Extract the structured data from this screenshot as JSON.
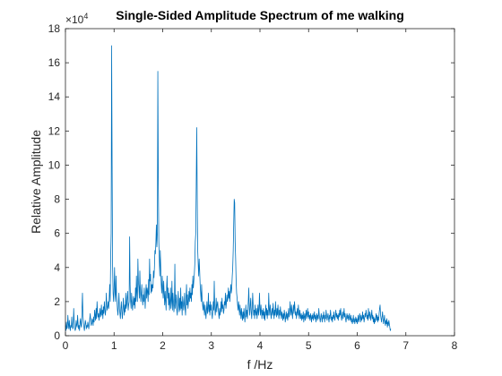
{
  "chart_data": {
    "type": "line",
    "title": "Single-Sided Amplitude Spectrum of me walking",
    "xlabel": "f /Hz",
    "ylabel": "Relative Amplitude",
    "y_exponent_label": "×10",
    "y_exponent_power": "4",
    "xlim": [
      0,
      8
    ],
    "ylim": [
      0,
      18
    ],
    "x_ticks": [
      0,
      1,
      2,
      3,
      4,
      5,
      6,
      7,
      8
    ],
    "y_ticks": [
      0,
      2,
      4,
      6,
      8,
      10,
      12,
      14,
      16,
      18
    ],
    "x_tick_labels": [
      "0",
      "1",
      "2",
      "3",
      "4",
      "5",
      "6",
      "7",
      "8"
    ],
    "y_tick_labels": [
      "0",
      "2",
      "4",
      "6",
      "8",
      "10",
      "12",
      "14",
      "16",
      "18"
    ],
    "grid": false,
    "line_color": "#0072BD",
    "series": [
      {
        "x_start": 0.0,
        "x_step": 0.01,
        "y": [
          0.6,
          0.3,
          0.8,
          0.4,
          0.5,
          1.2,
          0.7,
          0.4,
          0.9,
          0.5,
          0.3,
          0.6,
          0.5,
          1.1,
          0.6,
          0.4,
          0.5,
          1.6,
          0.8,
          0.5,
          0.3,
          0.4,
          0.9,
          0.6,
          0.5,
          1.2,
          0.7,
          0.4,
          0.6,
          0.3,
          0.8,
          1.0,
          0.6,
          0.5,
          1.5,
          2.5,
          1.2,
          0.8,
          0.5,
          0.3,
          0.6,
          0.9,
          0.7,
          0.4,
          0.6,
          0.5,
          0.8,
          0.6,
          0.4,
          0.7,
          1.0,
          1.3,
          0.8,
          0.6,
          0.7,
          1.0,
          0.9,
          0.6,
          1.1,
          0.8,
          1.5,
          1.2,
          0.9,
          1.6,
          1.0,
          2.0,
          1.4,
          1.1,
          1.3,
          0.9,
          1.2,
          1.6,
          1.1,
          1.3,
          1.8,
          1.2,
          1.5,
          1.0,
          1.7,
          1.3,
          2.0,
          1.6,
          1.2,
          1.5,
          2.5,
          1.8,
          1.5,
          1.7,
          2.0,
          1.6,
          2.2,
          3.0,
          2.0,
          4.5,
          6.0,
          17.0,
          10.0,
          4.0,
          2.5,
          2.0,
          2.8,
          4.0,
          2.5,
          2.0,
          3.5,
          2.4,
          2.0,
          1.5,
          1.2,
          1.8,
          2.5,
          1.6,
          1.3,
          1.0,
          1.6,
          2.0,
          1.4,
          1.0,
          1.5,
          2.2,
          1.6,
          1.2,
          1.8,
          1.4,
          2.5,
          1.6,
          1.8,
          2.3,
          2.6,
          1.5,
          1.8,
          2.0,
          5.8,
          3.0,
          2.0,
          1.6,
          2.5,
          2.0,
          1.5,
          1.8,
          2.3,
          1.8,
          2.2,
          1.6,
          2.8,
          2.0,
          3.5,
          2.5,
          2.0,
          4.5,
          3.2,
          2.8,
          2.2,
          3.8,
          2.6,
          2.0,
          2.5,
          3.0,
          2.2,
          1.8,
          2.4,
          2.0,
          2.8,
          2.2,
          1.6,
          2.5,
          3.0,
          2.2,
          2.8,
          2.6,
          2.0,
          3.3,
          2.4,
          4.5,
          3.2,
          3.6,
          2.5,
          3.0,
          2.6,
          3.0,
          2.8,
          3.8,
          3.4,
          4.0,
          5.0,
          4.8,
          5.5,
          6.5,
          5.2,
          6.0,
          15.5,
          9.0,
          5.5,
          4.5,
          3.5,
          5.0,
          4.0,
          3.0,
          2.5,
          3.5,
          2.8,
          2.2,
          3.2,
          2.5,
          1.8,
          2.6,
          2.0,
          1.5,
          2.8,
          3.5,
          2.2,
          2.8,
          1.8,
          2.5,
          1.5,
          2.0,
          2.8,
          1.6,
          2.0,
          3.2,
          1.5,
          2.5,
          2.0,
          1.4,
          1.8,
          4.2,
          1.6,
          2.0,
          2.4,
          1.5,
          1.2,
          2.0,
          2.6,
          1.8,
          1.4,
          2.2,
          1.5,
          2.8,
          1.6,
          2.0,
          1.2,
          2.3,
          2.0,
          1.5,
          1.8,
          2.5,
          1.6,
          1.2,
          2.2,
          3.0,
          1.8,
          2.4,
          1.6,
          2.0,
          2.6,
          2.0,
          2.8,
          2.2,
          2.5,
          2.0,
          3.0,
          2.4,
          3.5,
          2.8,
          3.2,
          3.6,
          4.2,
          5.5,
          6.0,
          9.0,
          12.2,
          8.0,
          5.0,
          4.2,
          3.5,
          4.5,
          3.8,
          3.0,
          2.5,
          2.0,
          3.0,
          2.2,
          1.8,
          1.5,
          2.0,
          1.6,
          1.2,
          1.8,
          1.4,
          1.0,
          1.5,
          2.0,
          1.3,
          1.6,
          2.5,
          1.4,
          1.8,
          1.2,
          2.0,
          1.5,
          1.8,
          1.3,
          1.0,
          1.5,
          2.0,
          1.5,
          3.2,
          1.8,
          1.2,
          1.5,
          2.2,
          1.4,
          1.8,
          2.0,
          1.6,
          1.3,
          1.0,
          1.6,
          1.2,
          1.5,
          2.0,
          1.4,
          2.2,
          1.6,
          1.8,
          1.3,
          1.5,
          2.0,
          1.8,
          2.5,
          1.6,
          1.9,
          2.4,
          2.0,
          2.2,
          2.8,
          2.2,
          2.6,
          2.0,
          2.5,
          3.0,
          2.5,
          2.8,
          3.5,
          4.0,
          5.0,
          6.5,
          8.0,
          7.8,
          5.5,
          4.5,
          3.2,
          2.5,
          2.2,
          1.8,
          1.5,
          2.0,
          1.6,
          1.2,
          1.8,
          1.4,
          1.0,
          1.6,
          1.2,
          0.9,
          1.4,
          1.0,
          1.6,
          1.2,
          0.8,
          1.3,
          1.8,
          1.1,
          1.5,
          1.0,
          1.4,
          2.0,
          2.8,
          1.6,
          1.2,
          1.8,
          2.2,
          1.4,
          1.0,
          1.6,
          2.5,
          1.8,
          1.2,
          1.5,
          1.0,
          1.8,
          1.4,
          1.2,
          1.6,
          1.0,
          1.4,
          1.8,
          1.2,
          1.5,
          2.5,
          1.6,
          1.2,
          1.8,
          1.4,
          1.0,
          1.5,
          1.2,
          1.6,
          1.0,
          1.4,
          0.9,
          1.3,
          1.8,
          1.2,
          1.6,
          1.0,
          1.5,
          1.2,
          2.5,
          1.6,
          1.2,
          1.8,
          1.4,
          1.0,
          1.3,
          1.6,
          1.2,
          1.9,
          1.4,
          1.0,
          1.5,
          1.2,
          2.0,
          1.4,
          1.1,
          1.6,
          1.2,
          1.8,
          1.3,
          1.0,
          1.5,
          1.2,
          1.7,
          1.3,
          1.0,
          1.4,
          1.2,
          0.9,
          1.3,
          1.0,
          1.5,
          1.2,
          0.8,
          1.1,
          1.4,
          1.0,
          1.3,
          0.9,
          1.2,
          1.6,
          1.1,
          1.3,
          2.0,
          1.5,
          1.2,
          1.8,
          1.4,
          1.0,
          1.5,
          1.8,
          1.3,
          2.0,
          1.6,
          1.2,
          1.4,
          1.0,
          1.3,
          1.6,
          1.2,
          1.8,
          1.3,
          1.0,
          1.5,
          1.2,
          1.0,
          1.3,
          0.9,
          1.2,
          1.0,
          1.4,
          0.8,
          1.1,
          1.3,
          0.9,
          1.2,
          1.5,
          1.0,
          1.3,
          1.6,
          1.1,
          1.4,
          1.0,
          1.2,
          0.9,
          1.3,
          1.1,
          0.8,
          1.2,
          1.0,
          1.3,
          0.9,
          1.1,
          1.4,
          1.0,
          1.2,
          0.8,
          1.1,
          1.3,
          0.9,
          1.2,
          1.0,
          1.6,
          1.2,
          1.0,
          0.8,
          1.1,
          1.3,
          1.0,
          0.8,
          1.2,
          1.0,
          1.4,
          1.1,
          0.8,
          1.2,
          1.0,
          1.5,
          1.2,
          0.9,
          1.1,
          1.3,
          1.0,
          0.8,
          1.2,
          1.0,
          1.5,
          1.2,
          0.9,
          1.1,
          0.8,
          1.2,
          1.0,
          1.4,
          1.1,
          0.9,
          1.2,
          1.5,
          1.1,
          1.3,
          1.0,
          1.2,
          0.9,
          1.3,
          1.1,
          1.5,
          1.2,
          1.6,
          1.1,
          0.9,
          1.2,
          1.4,
          1.0,
          1.2,
          1.6,
          1.1,
          1.3,
          1.0,
          0.8,
          1.1,
          1.3,
          1.0,
          1.2,
          0.9,
          1.1,
          1.3,
          0.9,
          1.0,
          1.2,
          0.8,
          1.0,
          0.7,
          0.9,
          1.2,
          0.8,
          1.0,
          0.7,
          0.9,
          1.1,
          0.8,
          1.0,
          0.7,
          0.9,
          1.2,
          0.8,
          1.0,
          1.3,
          1.1,
          0.8,
          1.2,
          0.9,
          1.0,
          1.4,
          1.0,
          1.2,
          0.8,
          1.0,
          1.3,
          1.1,
          1.5,
          1.3,
          1.0,
          1.2,
          0.9,
          1.6,
          1.2,
          1.0,
          1.4,
          1.2,
          0.9,
          1.2,
          1.5,
          1.0,
          1.2,
          0.8,
          1.1,
          0.7,
          1.0,
          0.8,
          1.1,
          1.3,
          0.9,
          1.2,
          0.8,
          1.1,
          0.9,
          1.3,
          1.6,
          1.8,
          1.2,
          1.0,
          0.8,
          1.1,
          1.4,
          1.0,
          0.7,
          0.9,
          1.2,
          0.8,
          0.6,
          0.9,
          0.7,
          1.0,
          0.5,
          0.8,
          0.6,
          0.9,
          0.7,
          0.5,
          0.3,
          0.4
        ]
      }
    ]
  }
}
